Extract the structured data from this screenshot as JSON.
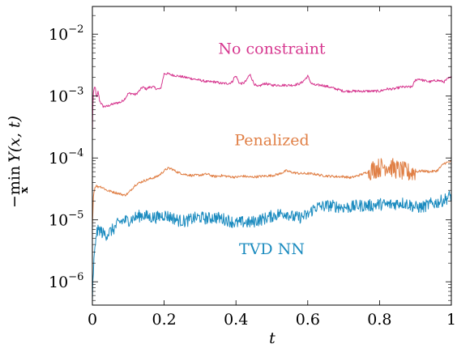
{
  "chart_data": {
    "type": "line",
    "xlabel": "t",
    "ylabel": "−min_x Y(x, t)",
    "ylabel_parts": {
      "minus_min": "−min",
      "sub": "x",
      "expr": "Y(x, t)"
    },
    "xlim": [
      0,
      1
    ],
    "ylim": [
      4.2e-07,
      0.028
    ],
    "yscale": "log",
    "x_ticks": [
      {
        "value": 0,
        "label": "0"
      },
      {
        "value": 0.2,
        "label": "0.2"
      },
      {
        "value": 0.4,
        "label": "0.4"
      },
      {
        "value": 0.6,
        "label": "0.6"
      },
      {
        "value": 0.8,
        "label": "0.8"
      },
      {
        "value": 1,
        "label": "1"
      }
    ],
    "y_ticks": [
      {
        "value": 0.01,
        "base": "10",
        "exp": "−2"
      },
      {
        "value": 0.001,
        "base": "10",
        "exp": "−3"
      },
      {
        "value": 0.0001,
        "base": "10",
        "exp": "−4"
      },
      {
        "value": 1e-05,
        "base": "10",
        "exp": "−5"
      },
      {
        "value": 1e-06,
        "base": "10",
        "exp": "−6"
      }
    ],
    "grid": false,
    "legend": "none",
    "series": [
      {
        "name": "No constraint",
        "color": "#d6378f",
        "noise": 0.02,
        "x": [
          0,
          0.002,
          0.005,
          0.008,
          0.012,
          0.016,
          0.02,
          0.025,
          0.03,
          0.04,
          0.05,
          0.06,
          0.07,
          0.08,
          0.09,
          0.1,
          0.11,
          0.12,
          0.13,
          0.14,
          0.15,
          0.16,
          0.17,
          0.18,
          0.19,
          0.2,
          0.21,
          0.22,
          0.24,
          0.26,
          0.28,
          0.3,
          0.32,
          0.34,
          0.36,
          0.38,
          0.39,
          0.395,
          0.4,
          0.41,
          0.42,
          0.43,
          0.435,
          0.44,
          0.45,
          0.46,
          0.48,
          0.5,
          0.52,
          0.54,
          0.56,
          0.58,
          0.59,
          0.6,
          0.61,
          0.62,
          0.64,
          0.66,
          0.68,
          0.7,
          0.72,
          0.74,
          0.76,
          0.78,
          0.8,
          0.82,
          0.84,
          0.86,
          0.88,
          0.89,
          0.9,
          0.91,
          0.92,
          0.94,
          0.96,
          0.98,
          0.99,
          1
        ],
        "y": [
          0.00025,
          0.0011,
          0.0013,
          0.0014,
          0.0009,
          0.0012,
          0.00085,
          0.00075,
          0.00068,
          0.00068,
          0.00072,
          0.00075,
          0.00078,
          0.0008,
          0.0009,
          0.0011,
          0.0011,
          0.00105,
          0.0012,
          0.0014,
          0.0013,
          0.0014,
          0.0014,
          0.0013,
          0.0013,
          0.0023,
          0.0023,
          0.0022,
          0.0021,
          0.002,
          0.0019,
          0.0018,
          0.0017,
          0.0017,
          0.0016,
          0.0016,
          0.0017,
          0.002,
          0.0021,
          0.0016,
          0.0016,
          0.0018,
          0.0021,
          0.0022,
          0.0016,
          0.0014,
          0.0016,
          0.0015,
          0.0015,
          0.0015,
          0.0015,
          0.0016,
          0.0018,
          0.0021,
          0.0016,
          0.0015,
          0.0015,
          0.0014,
          0.0013,
          0.0012,
          0.0012,
          0.0012,
          0.0012,
          0.0012,
          0.0012,
          0.0013,
          0.0013,
          0.0014,
          0.0014,
          0.0014,
          0.0018,
          0.0019,
          0.0018,
          0.0017,
          0.0018,
          0.0017,
          0.0019,
          0.002
        ]
      },
      {
        "name": "Penalized",
        "color": "#e07f45",
        "noise": 0.02,
        "noisy_from": 0.77,
        "noisy_to": 0.9,
        "noisy_amp": 0.16,
        "x": [
          0,
          0.003,
          0.006,
          0.01,
          0.015,
          0.02,
          0.03,
          0.04,
          0.05,
          0.06,
          0.07,
          0.08,
          0.09,
          0.1,
          0.12,
          0.14,
          0.16,
          0.18,
          0.19,
          0.2,
          0.21,
          0.22,
          0.23,
          0.24,
          0.26,
          0.28,
          0.3,
          0.32,
          0.34,
          0.36,
          0.38,
          0.4,
          0.42,
          0.44,
          0.46,
          0.48,
          0.5,
          0.52,
          0.54,
          0.56,
          0.58,
          0.6,
          0.62,
          0.64,
          0.66,
          0.68,
          0.7,
          0.72,
          0.74,
          0.76,
          0.78,
          0.8,
          0.82,
          0.84,
          0.86,
          0.88,
          0.9,
          0.92,
          0.94,
          0.96,
          0.98,
          1
        ],
        "y": [
          8e-06,
          2.5e-05,
          3.2e-05,
          3.6e-05,
          3.4e-05,
          3.5e-05,
          3.3e-05,
          3e-05,
          2.9e-05,
          2.8e-05,
          2.7e-05,
          2.6e-05,
          2.5e-05,
          2.7e-05,
          3.7e-05,
          4.2e-05,
          4.6e-05,
          5e-05,
          5.5e-05,
          6.2e-05,
          6.8e-05,
          6.7e-05,
          6.2e-05,
          5.8e-05,
          5.4e-05,
          5.2e-05,
          5.3e-05,
          5.5e-05,
          5e-05,
          5.2e-05,
          5e-05,
          4.9e-05,
          5.1e-05,
          4.9e-05,
          5e-05,
          5.1e-05,
          5.2e-05,
          5.5e-05,
          6.2e-05,
          5.8e-05,
          5.6e-05,
          5.6e-05,
          5.5e-05,
          5.2e-05,
          5.1e-05,
          5e-05,
          5e-05,
          4.8e-05,
          5.2e-05,
          5.7e-05,
          6.5e-05,
          7e-05,
          7.5e-05,
          6.8e-05,
          6.2e-05,
          5.8e-05,
          6e-05,
          6.2e-05,
          6e-05,
          6.2e-05,
          8.2e-05,
          8.8e-05
        ]
      },
      {
        "name": "TVD NN",
        "color": "#1b8bbf",
        "noise": 0.1,
        "x": [
          0,
          0.002,
          0.004,
          0.006,
          0.008,
          0.01,
          0.015,
          0.02,
          0.03,
          0.04,
          0.05,
          0.06,
          0.07,
          0.08,
          0.09,
          0.1,
          0.12,
          0.14,
          0.16,
          0.18,
          0.2,
          0.22,
          0.24,
          0.26,
          0.28,
          0.3,
          0.32,
          0.34,
          0.36,
          0.38,
          0.4,
          0.42,
          0.44,
          0.46,
          0.48,
          0.5,
          0.52,
          0.54,
          0.56,
          0.58,
          0.6,
          0.62,
          0.64,
          0.66,
          0.68,
          0.7,
          0.72,
          0.74,
          0.76,
          0.78,
          0.8,
          0.82,
          0.84,
          0.86,
          0.88,
          0.9,
          0.92,
          0.94,
          0.96,
          0.98,
          1
        ],
        "y": [
          5e-07,
          1.2e-06,
          2e-06,
          2.8e-06,
          3.5e-06,
          6e-06,
          6.5e-06,
          7e-06,
          6e-06,
          5.8e-06,
          6.5e-06,
          7.2e-06,
          8.5e-06,
          9.5e-06,
          9.8e-06,
          9.8e-06,
          1.1e-05,
          1.2e-05,
          1.1e-05,
          1.1e-05,
          1.2e-05,
          1.1e-05,
          9.8e-06,
          9.5e-06,
          1.05e-05,
          1.1e-05,
          1.05e-05,
          1.1e-05,
          1.05e-05,
          9.8e-06,
          8.8e-06,
          9.2e-06,
          9e-06,
          9.8e-06,
          1.05e-05,
          1.15e-05,
          1.25e-05,
          1.3e-05,
          1.1e-05,
          1.1e-05,
          1.2e-05,
          1.6e-05,
          1.65e-05,
          1.7e-05,
          1.65e-05,
          1.6e-05,
          1.6e-05,
          1.7e-05,
          1.7e-05,
          1.7e-05,
          1.8e-05,
          1.75e-05,
          1.8e-05,
          1.9e-05,
          1.8e-05,
          1.6e-05,
          1.6e-05,
          1.8e-05,
          1.9e-05,
          2.1e-05,
          2.5e-05
        ]
      }
    ],
    "annotations": [
      {
        "text": "No constraint",
        "x": 0.5,
        "y": 0.0048,
        "color": "#d6378f"
      },
      {
        "text": "Penalized",
        "x": 0.5,
        "y": 0.00016,
        "color": "#e07f45"
      },
      {
        "text": "TVD NN",
        "x": 0.5,
        "y": 2.8e-06,
        "color": "#1b8bbf"
      }
    ]
  }
}
